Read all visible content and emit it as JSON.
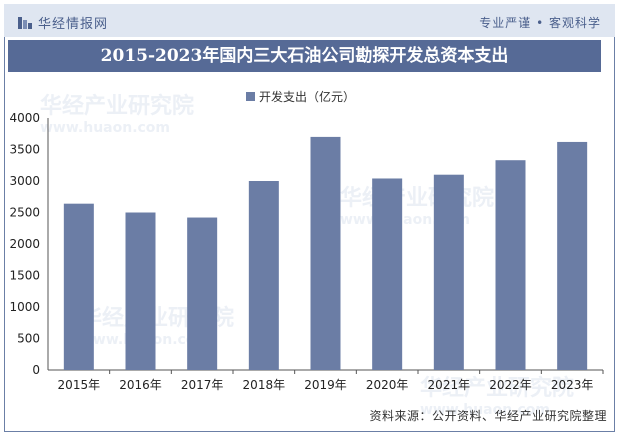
{
  "brand": {
    "name": "华经情报网",
    "tagline": "专业严谨 • 客观科学"
  },
  "watermark": {
    "text": "华经产业研究院",
    "url": "www.huaon.com"
  },
  "source": "资料来源：公开资料、华经产业研究院整理",
  "colors": {
    "bar": "#6b7da5",
    "title_bg": "#566a96",
    "topbar_bg": "#dfe6f1"
  },
  "chart_data": {
    "type": "bar",
    "title": "2015-2023年国内三大石油公司勘探开发总资本支出",
    "legend": "开发支出（亿元）",
    "xlabel": "",
    "ylabel": "",
    "ylim": [
      0,
      4000
    ],
    "yticks": [
      0,
      500,
      1000,
      1500,
      2000,
      2500,
      3000,
      3500,
      4000
    ],
    "categories": [
      "2015年",
      "2016年",
      "2017年",
      "2018年",
      "2019年",
      "2020年",
      "2021年",
      "2022年",
      "2023年"
    ],
    "series": [
      {
        "name": "开发支出（亿元）",
        "values": [
          2640,
          2500,
          2420,
          3000,
          3700,
          3040,
          3100,
          3330,
          3620
        ]
      }
    ]
  }
}
